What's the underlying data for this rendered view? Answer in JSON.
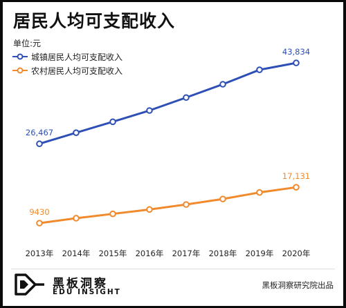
{
  "chart_data": {
    "type": "line",
    "title": "居民人均可支配收入",
    "unit_label": "单位:元",
    "categories": [
      "2013年",
      "2014年",
      "2015年",
      "2016年",
      "2017年",
      "2018年",
      "2019年",
      "2020年"
    ],
    "series": [
      {
        "name": "城镇居民人均可支配收入",
        "color": "#2e4fb5",
        "values": [
          26467,
          28844,
          31195,
          33616,
          36396,
          39251,
          42359,
          43834
        ],
        "labels": [
          {
            "index": 0,
            "text": "26,467"
          },
          {
            "index": 7,
            "text": "43,834"
          }
        ]
      },
      {
        "name": "农村居民人均可支配收入",
        "color": "#f08a2c",
        "values": [
          9430,
          10489,
          11422,
          12363,
          13432,
          14617,
          16021,
          17131
        ],
        "labels": [
          {
            "index": 0,
            "text": "9430"
          },
          {
            "index": 7,
            "text": "17,131"
          }
        ]
      }
    ],
    "ylim": [
      5000,
      48000
    ],
    "grid": false,
    "legend_position": "top-left"
  },
  "footer": {
    "brand_cn": "黑板洞察",
    "brand_en": "EDU INSIGHT",
    "credit": "黑板洞察研究院出品"
  },
  "colors": {
    "background": "#ffffff",
    "urban": "#2e4fb5",
    "rural": "#f08a2c"
  }
}
